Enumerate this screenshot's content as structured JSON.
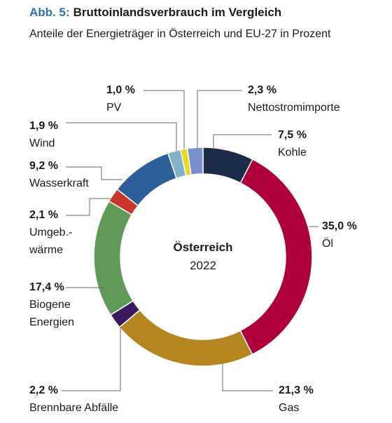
{
  "chart_data": {
    "type": "donut",
    "title_prefix": "Abb. 5:",
    "title": "Bruttoinlandsverbrauch im Vergleich",
    "subtitle": "Anteile der Energieträger in Österreich und EU-27 in Prozent",
    "center_title": "Österreich",
    "center_subtitle": "2022",
    "categories": [
      "Kohle",
      "Öl",
      "Gas",
      "Brennbare Abfälle",
      "Biogene\nEnergien",
      "Umgeb.-\nwärme",
      "Wasserkraft",
      "Wind",
      "PV",
      "Nettostromimporte"
    ],
    "values": [
      7.5,
      35.0,
      21.3,
      2.2,
      17.4,
      2.1,
      9.2,
      1.9,
      1.0,
      2.3
    ],
    "value_labels": [
      "7,5 %",
      "35,0 %",
      "21,3 %",
      "2,2 %",
      "17,4 %",
      "2,1 %",
      "9,2 %",
      "1,9 %",
      "1,0 %",
      "2,3 %"
    ],
    "colors": [
      "#1c2b48",
      "#b0003c",
      "#b5861f",
      "#3b1b5e",
      "#5f9a57",
      "#c9342b",
      "#2f5f9b",
      "#80b1c8",
      "#efd91f",
      "#7b8fcf"
    ]
  }
}
